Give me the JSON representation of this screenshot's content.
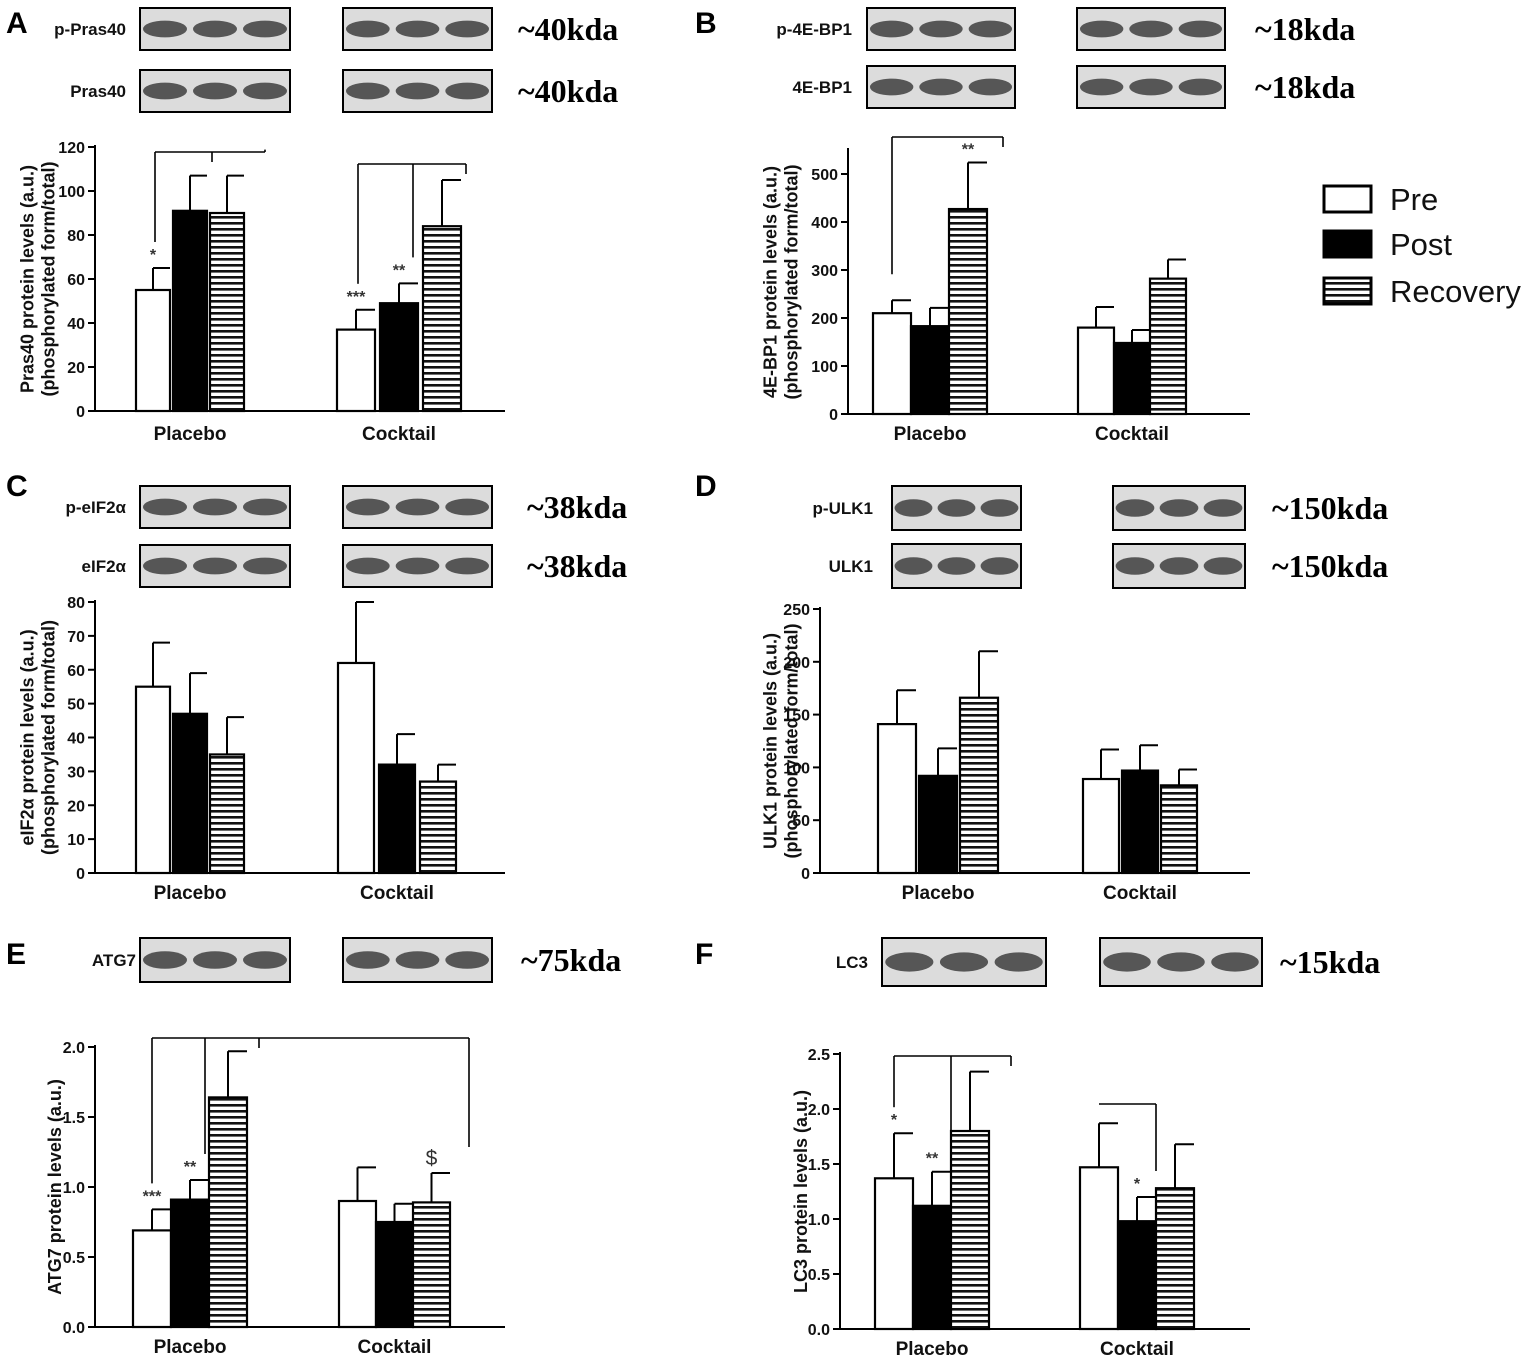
{
  "legend": {
    "position": "right",
    "items": [
      {
        "label": "Pre",
        "style": "white"
      },
      {
        "label": "Post",
        "style": "black"
      },
      {
        "label": "Recovery",
        "style": "striped"
      }
    ]
  },
  "colors": {
    "bar_outline": "#000000",
    "post_fill": "#000000",
    "pre_fill": "#ffffff",
    "blot_band": "#2a2a2a",
    "blot_bg": "#dcdcdc"
  },
  "chart_data": [
    {
      "panel": "A",
      "type": "bar",
      "categories": [
        "Placebo",
        "Cocktail"
      ],
      "series": [
        {
          "name": "Pre",
          "values": [
            55,
            37
          ],
          "errors": [
            10,
            9
          ]
        },
        {
          "name": "Post",
          "values": [
            91,
            49
          ],
          "errors": [
            16,
            9
          ]
        },
        {
          "name": "Recovery",
          "values": [
            90,
            84
          ],
          "errors": [
            17,
            21
          ]
        }
      ],
      "ylabel": [
        "Pras40 protein levels (a.u.)",
        "(phosphorylated form/total)"
      ],
      "ylim": [
        0,
        120
      ],
      "yticks": [
        "0",
        "20",
        "40",
        "60",
        "80",
        "100",
        "120"
      ],
      "annotations": [
        {
          "text": "*",
          "category": 0,
          "series": 0
        },
        {
          "text": "***",
          "category": 1,
          "series": 0
        },
        {
          "text": "**",
          "category": 1,
          "series": 1
        }
      ],
      "blots": [
        {
          "label": "p-Pras40",
          "kda": "~40kda"
        },
        {
          "label": "Pras40",
          "kda": "~40kda"
        }
      ]
    },
    {
      "panel": "B",
      "type": "bar",
      "categories": [
        "Placebo",
        "Cocktail"
      ],
      "series": [
        {
          "name": "Pre",
          "values": [
            210,
            180
          ],
          "errors": [
            27,
            43
          ]
        },
        {
          "name": "Post",
          "values": [
            183,
            148
          ],
          "errors": [
            38,
            27
          ]
        },
        {
          "name": "Recovery",
          "values": [
            427,
            282
          ],
          "errors": [
            97,
            40
          ]
        }
      ],
      "ylabel": [
        "4E-BP1 protein levels (a.u.)",
        "(phosphorylated form/total)"
      ],
      "ylim": [
        0,
        550
      ],
      "yticks": [
        "0",
        "100",
        "200",
        "300",
        "400",
        "500"
      ],
      "annotations": [
        {
          "text": "**",
          "category": 0,
          "series": 2
        }
      ],
      "blots": [
        {
          "label": "p-4E-BP1",
          "kda": "~18kda"
        },
        {
          "label": "4E-BP1",
          "kda": "~18kda"
        }
      ]
    },
    {
      "panel": "C",
      "type": "bar",
      "categories": [
        "Placebo",
        "Cocktail"
      ],
      "series": [
        {
          "name": "Pre",
          "values": [
            55,
            62
          ],
          "errors": [
            13,
            18
          ]
        },
        {
          "name": "Post",
          "values": [
            47,
            32
          ],
          "errors": [
            12,
            9
          ]
        },
        {
          "name": "Recovery",
          "values": [
            35,
            27
          ],
          "errors": [
            11,
            5
          ]
        }
      ],
      "ylabel": [
        "eIF2α protein levels (a.u.)",
        "(phosphorylated form/total)"
      ],
      "ylim": [
        0,
        80
      ],
      "yticks": [
        "0",
        "10",
        "20",
        "30",
        "40",
        "50",
        "60",
        "70",
        "80"
      ],
      "annotations": [],
      "blots": [
        {
          "label": "p-eIF2α",
          "kda": "~38kda"
        },
        {
          "label": "eIF2α",
          "kda": "~38kda"
        }
      ]
    },
    {
      "panel": "D",
      "type": "bar",
      "categories": [
        "Placebo",
        "Cocktail"
      ],
      "series": [
        {
          "name": "Pre",
          "values": [
            141,
            89
          ],
          "errors": [
            32,
            28
          ]
        },
        {
          "name": "Post",
          "values": [
            92,
            97
          ],
          "errors": [
            26,
            24
          ]
        },
        {
          "name": "Recovery",
          "values": [
            166,
            83
          ],
          "errors": [
            44,
            15
          ]
        }
      ],
      "ylabel": [
        "ULK1 protein levels (a.u.)",
        "(phosphorylated form/total)"
      ],
      "ylim": [
        0,
        250
      ],
      "yticks": [
        "0",
        "50",
        "100",
        "150",
        "200",
        "250"
      ],
      "annotations": [],
      "blots": [
        {
          "label": "p-ULK1",
          "kda": "~150kda"
        },
        {
          "label": "ULK1",
          "kda": "~150kda"
        }
      ]
    },
    {
      "panel": "E",
      "type": "bar",
      "categories": [
        "Placebo",
        "Cocktail"
      ],
      "series": [
        {
          "name": "Pre",
          "values": [
            0.69,
            0.9
          ],
          "errors": [
            0.15,
            0.24
          ]
        },
        {
          "name": "Post",
          "values": [
            0.91,
            0.75
          ],
          "errors": [
            0.14,
            0.13
          ]
        },
        {
          "name": "Recovery",
          "values": [
            1.64,
            0.89
          ],
          "errors": [
            0.33,
            0.21
          ]
        }
      ],
      "ylabel": [
        "ATG7 protein levels (a.u.)"
      ],
      "ylim": [
        0,
        2.0
      ],
      "yticks": [
        "0.0",
        "0.5",
        "1.0",
        "1.5",
        "2.0"
      ],
      "annotations": [
        {
          "text": "***",
          "category": 0,
          "series": 0
        },
        {
          "text": "**",
          "category": 0,
          "series": 1
        },
        {
          "text": "$",
          "category": 1,
          "series": 2
        }
      ],
      "blots": [
        {
          "label": "ATG7",
          "kda": "~75kda"
        }
      ]
    },
    {
      "panel": "F",
      "type": "bar",
      "categories": [
        "Placebo",
        "Cocktail"
      ],
      "series": [
        {
          "name": "Pre",
          "values": [
            1.37,
            1.47
          ],
          "errors": [
            0.41,
            0.4
          ]
        },
        {
          "name": "Post",
          "values": [
            1.12,
            0.98
          ],
          "errors": [
            0.31,
            0.22
          ]
        },
        {
          "name": "Recovery",
          "values": [
            1.8,
            1.28
          ],
          "errors": [
            0.54,
            0.4
          ]
        }
      ],
      "ylabel": [
        "LC3 protein levels (a.u.)"
      ],
      "ylim": [
        0,
        2.5
      ],
      "yticks": [
        "0.0",
        "0.5",
        "1.0",
        "1.5",
        "2.0",
        "2.5"
      ],
      "annotations": [
        {
          "text": "*",
          "category": 0,
          "series": 0
        },
        {
          "text": "**",
          "category": 0,
          "series": 1
        },
        {
          "text": "*",
          "category": 1,
          "series": 1
        }
      ],
      "blots": [
        {
          "label": "LC3",
          "kda": "~15kda"
        }
      ]
    }
  ]
}
